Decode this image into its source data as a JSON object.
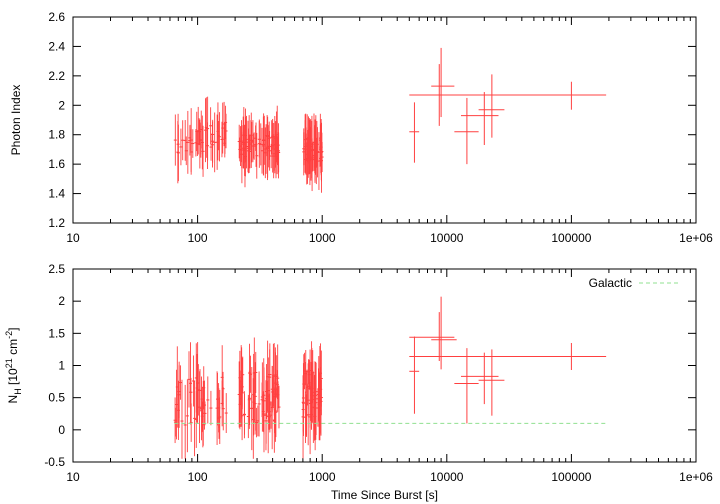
{
  "chart_data": [
    {
      "type": "scatter",
      "title": "",
      "xlabel": "",
      "ylabel": "Photon Index",
      "xscale": "log",
      "xlim": [
        10,
        1000000
      ],
      "ylim": [
        1.2,
        2.6
      ],
      "xticks": [
        {
          "value": 10,
          "label": "10"
        },
        {
          "value": 100,
          "label": "100"
        },
        {
          "value": 1000,
          "label": "1000"
        },
        {
          "value": 10000,
          "label": "10000"
        },
        {
          "value": 100000,
          "label": "100000"
        },
        {
          "value": 1000000,
          "label": "1e+06"
        }
      ],
      "yticks": [
        {
          "value": 1.2,
          "label": "1.2"
        },
        {
          "value": 1.4,
          "label": "1.4"
        },
        {
          "value": 1.6,
          "label": "1.6"
        },
        {
          "value": 1.8,
          "label": "1.8"
        },
        {
          "value": 2.0,
          "label": "2"
        },
        {
          "value": 2.2,
          "label": "2.2"
        },
        {
          "value": 2.4,
          "label": "2.4"
        },
        {
          "value": 2.6,
          "label": "2.6"
        }
      ],
      "series": [
        {
          "color": "#ff4040",
          "error_bars": "x and y",
          "points": [
            {
              "x": 5500,
              "xlo": 5000,
              "xhi": 6000,
              "y": 1.82,
              "ylo": 1.61,
              "yhi": 2.02
            },
            {
              "x": 8700,
              "xlo": 6800,
              "xhi": 10500,
              "y": 2.07,
              "ylo": 1.86,
              "yhi": 2.28
            },
            {
              "x": 9000,
              "xlo": 7500,
              "xhi": 11500,
              "y": 2.13,
              "ylo": 1.92,
              "yhi": 2.39
            },
            {
              "x": 14500,
              "xlo": 11500,
              "xhi": 18000,
              "y": 1.82,
              "ylo": 1.6,
              "yhi": 2.05
            },
            {
              "x": 20000,
              "xlo": 13000,
              "xhi": 26000,
              "y": 1.93,
              "ylo": 1.73,
              "yhi": 2.09
            },
            {
              "x": 23000,
              "xlo": 18000,
              "xhi": 29000,
              "y": 1.97,
              "ylo": 1.78,
              "yhi": 2.21
            },
            {
              "x": 100000,
              "xlo": 5000,
              "xhi": 190000,
              "y": 2.07,
              "ylo": 1.97,
              "yhi": 2.16
            }
          ]
        }
      ]
    },
    {
      "type": "scatter",
      "title": "",
      "xlabel": "Time Since Burst [s]",
      "ylabel": "N_H [10^21 cm^-2]",
      "ylabel_parts": {
        "base": "N",
        "sub1": "H",
        "mid": " [10",
        "sup1": "21",
        "mid2": " cm",
        "sup2": "-2",
        "end": "]"
      },
      "xscale": "log",
      "xlim": [
        10,
        1000000
      ],
      "ylim": [
        -0.5,
        2.5
      ],
      "legend_position": "top-right",
      "xticks": [
        {
          "value": 10,
          "label": "10"
        },
        {
          "value": 100,
          "label": "100"
        },
        {
          "value": 1000,
          "label": "1000"
        },
        {
          "value": 10000,
          "label": "10000"
        },
        {
          "value": 100000,
          "label": "100000"
        },
        {
          "value": 1000000,
          "label": "1e+06"
        }
      ],
      "yticks": [
        {
          "value": -0.5,
          "label": "-0.5"
        },
        {
          "value": 0,
          "label": "0"
        },
        {
          "value": 0.5,
          "label": "0.5"
        },
        {
          "value": 1.0,
          "label": "1"
        },
        {
          "value": 1.5,
          "label": "1.5"
        },
        {
          "value": 2.0,
          "label": "2"
        },
        {
          "value": 2.5,
          "label": "2.5"
        }
      ],
      "series": [
        {
          "color": "#ff4040",
          "error_bars": "x and y",
          "points": [
            {
              "x": 5500,
              "xlo": 5000,
              "xhi": 6000,
              "y": 0.91,
              "ylo": 0.25,
              "yhi": 1.45
            },
            {
              "x": 8700,
              "xlo": 5000,
              "xhi": 11500,
              "y": 1.44,
              "ylo": 1.07,
              "yhi": 1.83
            },
            {
              "x": 9000,
              "xlo": 7500,
              "xhi": 12000,
              "y": 1.4,
              "ylo": 0.94,
              "yhi": 2.07
            },
            {
              "x": 14500,
              "xlo": 11500,
              "xhi": 18000,
              "y": 0.72,
              "ylo": 0.1,
              "yhi": 1.27
            },
            {
              "x": 20000,
              "xlo": 13000,
              "xhi": 26000,
              "y": 0.83,
              "ylo": 0.4,
              "yhi": 1.2
            },
            {
              "x": 23000,
              "xlo": 18000,
              "xhi": 29000,
              "y": 0.77,
              "ylo": 0.22,
              "yhi": 1.25
            },
            {
              "x": 100000,
              "xlo": 5000,
              "xhi": 190000,
              "y": 1.14,
              "ylo": 0.93,
              "yhi": 1.35
            }
          ]
        },
        {
          "name": "Galactic",
          "color": "#90e090",
          "style": "dashed",
          "x": [
            65,
            190000
          ],
          "y": [
            0.1,
            0.1
          ]
        }
      ]
    }
  ]
}
